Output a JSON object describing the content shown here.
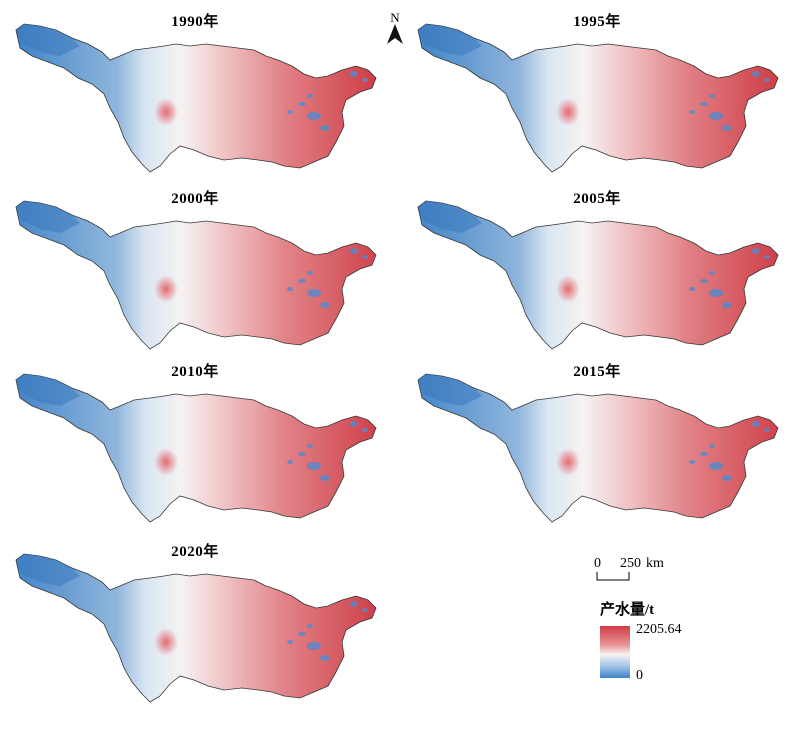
{
  "panels": [
    {
      "year": "1990年",
      "intensity": 1.0
    },
    {
      "year": "1995年",
      "intensity": 1.0
    },
    {
      "year": "2000年",
      "intensity": 0.85
    },
    {
      "year": "2005年",
      "intensity": 0.95
    },
    {
      "year": "2010年",
      "intensity": 0.9
    },
    {
      "year": "2015年",
      "intensity": 0.88
    },
    {
      "year": "2020年",
      "intensity": 0.92
    }
  ],
  "north_arrow": {
    "label": "N"
  },
  "scale_bar": {
    "start": "0",
    "end": "250",
    "unit": "km"
  },
  "legend": {
    "title": "产水量/t",
    "max_label": "2205.64",
    "min_label": "0",
    "max_value": 2205.64,
    "min_value": 0,
    "color_high": "#cf3d46",
    "color_mid": "#f6f2f2",
    "color_low": "#3f83c7"
  }
}
